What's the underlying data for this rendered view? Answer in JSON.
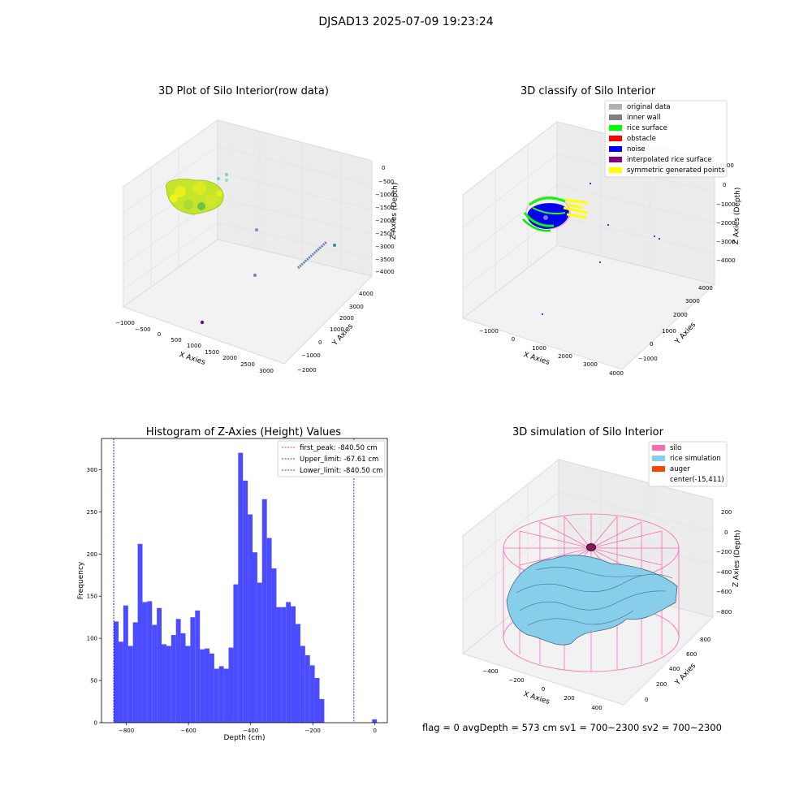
{
  "figure": {
    "title": "DJSAD13 2025-07-09 19:23:24",
    "footer_text": "flag = 0     avgDepth = 573 cm  sv1 = 700~2300  sv2 = 700~2300"
  },
  "panels": {
    "raw": {
      "title": "3D Plot of Silo Interior(row data)",
      "xlabel": "X Axies",
      "ylabel": "Y Axies",
      "zlabel": "Z Axies (Depth)",
      "xticks": [
        "−1000",
        "−500",
        "0",
        "500",
        "1000",
        "1500",
        "2000",
        "2500",
        "3000"
      ],
      "yticks": [
        "−2000",
        "−1000",
        "0",
        "1000",
        "2000",
        "3000",
        "4000"
      ],
      "zticks": [
        "0",
        "−500",
        "−1000",
        "−1500",
        "−2000",
        "−2500",
        "−3000",
        "−3500",
        "−4000"
      ]
    },
    "classify": {
      "title": "3D classify of Silo Interior",
      "xlabel": "X Axies",
      "ylabel": "Y Axies",
      "zlabel": "Z Axies (Depth)",
      "xticks": [
        "−1000",
        "0",
        "1000",
        "2000",
        "3000",
        "4000"
      ],
      "yticks": [
        "−1000",
        "0",
        "1000",
        "2000",
        "3000",
        "4000"
      ],
      "zticks": [
        "1000",
        "0",
        "−1000",
        "−2000",
        "−3000",
        "−4000"
      ],
      "legend": [
        {
          "label": "original data",
          "color": "#b0b0b0"
        },
        {
          "label": "inner wall",
          "color": "#808080"
        },
        {
          "label": "rice surface",
          "color": "#00ff00"
        },
        {
          "label": "obstacle",
          "color": "#ff0000"
        },
        {
          "label": "noise",
          "color": "#0000ff"
        },
        {
          "label": "interpolated rice surface",
          "color": "#800080"
        },
        {
          "label": "symmetric generated points",
          "color": "#ffff00"
        }
      ]
    },
    "simulation": {
      "title": "3D simulation of Silo Interior",
      "xlabel": "X Axies",
      "ylabel": "Y Axies",
      "zlabel": "Z Axies (Depth)",
      "xticks": [
        "−400",
        "−200",
        "0",
        "200",
        "400"
      ],
      "yticks": [
        "0",
        "200",
        "400",
        "600",
        "800"
      ],
      "zticks": [
        "200",
        "0",
        "−200",
        "−400",
        "−600",
        "−800"
      ],
      "legend": [
        {
          "label": "silo",
          "color": "#ff69b4"
        },
        {
          "label": "rice simulation",
          "color": "#87ceeb"
        },
        {
          "label": "auger",
          "color": "#ff4500"
        },
        {
          "label": "center(-15,411)",
          "color": ""
        }
      ]
    }
  },
  "chart_data": {
    "type": "bar",
    "title": "Histogram of Z-Axies (Height) Values",
    "xlabel": "Depth (cm)",
    "ylabel": "Frequency",
    "xlim": [
      -880,
      40
    ],
    "ylim": [
      0,
      337
    ],
    "xticks": [
      -800,
      -600,
      -400,
      -200,
      0
    ],
    "xtick_labels": [
      "−800",
      "−600",
      "−400",
      "−200",
      "0"
    ],
    "yticks": [
      0,
      50,
      100,
      150,
      200,
      250,
      300
    ],
    "bar_color": "#4b4bff",
    "bin_start": -840.5,
    "bin_width": 15.4,
    "values": [
      120,
      96,
      139,
      91,
      119,
      212,
      143,
      144,
      116,
      136,
      93,
      91,
      104,
      123,
      106,
      91,
      125,
      133,
      87,
      88,
      82,
      64,
      67,
      64,
      89,
      164,
      320,
      287,
      247,
      202,
      166,
      265,
      219,
      183,
      137,
      137,
      143,
      138,
      117,
      91,
      80,
      68,
      53,
      28,
      0,
      0,
      0,
      0,
      0,
      0,
      0,
      0,
      0,
      0,
      4
    ],
    "lines": [
      {
        "label": "first_peak: -840.50 cm",
        "x": -840.5,
        "color": "#ff0000"
      },
      {
        "label": "Upper_limit: -67.61 cm",
        "x": -67.61,
        "color": "#0000ff"
      },
      {
        "label": "Lower_limit: -840.50 cm",
        "x": -840.5,
        "color": "#0000ff"
      }
    ]
  }
}
